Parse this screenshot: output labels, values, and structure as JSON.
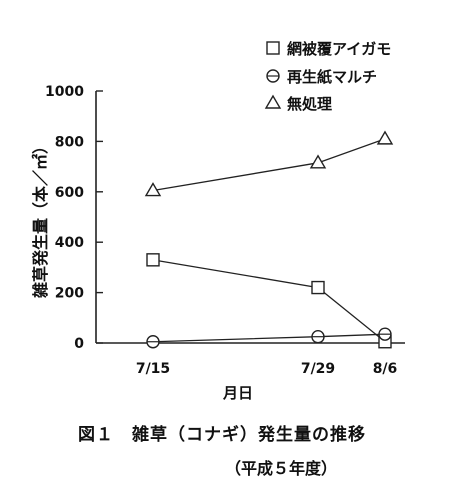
{
  "chart_data": {
    "type": "line",
    "ylabel": "雑草発生量（本／㎡）",
    "xlabel": "月日",
    "x": [
      "7/15",
      "7/29",
      "8/6"
    ],
    "ylim": [
      0,
      1000
    ],
    "yticks": [
      0,
      200,
      400,
      600,
      800,
      1000
    ],
    "grid": false,
    "legend_position": "top-right",
    "series": [
      {
        "name": "網被覆アイガモ",
        "marker": "square",
        "values": [
          330,
          220,
          5
        ]
      },
      {
        "name": "再生紙マルチ",
        "marker": "circle",
        "values": [
          5,
          25,
          35
        ]
      },
      {
        "name": "無処理",
        "marker": "triangle",
        "values": [
          605,
          715,
          810
        ]
      }
    ]
  },
  "caption": {
    "figure": "図１　雑草（コナギ）発生量の推移",
    "note": "（平成５年度）"
  }
}
